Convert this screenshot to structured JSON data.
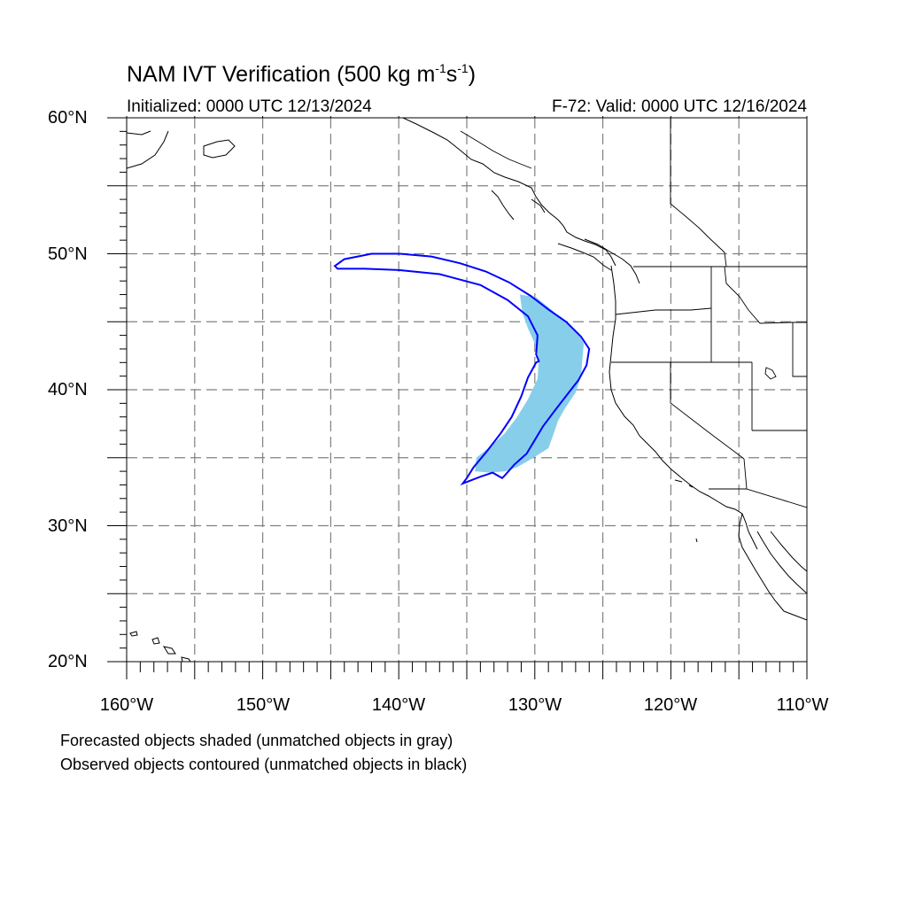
{
  "title": {
    "main": "NAM IVT Verification (500 kg m",
    "exp1": "-1",
    "mid": "s",
    "exp2": "-1",
    "close": ")"
  },
  "subtitle_left": "Initialized: 0000 UTC 12/13/2024",
  "subtitle_right": "F-72: Valid: 0000 UTC 12/16/2024",
  "lat_labels": [
    "60°N",
    "50°N",
    "40°N",
    "30°N",
    "20°N"
  ],
  "lon_labels": [
    "160°W",
    "150°W",
    "140°W",
    "130°W",
    "120°W",
    "110°W"
  ],
  "footnotes": [
    "Forecasted objects shaded (unmatched objects in gray)",
    "Observed objects contoured (unmatched objects in black)"
  ],
  "colors": {
    "forecast_fill": "#87ceeb",
    "observed_contour": "#0000ff",
    "grid": "#808080",
    "coast": "#000000"
  },
  "map_extent": {
    "lon_min": -160,
    "lon_max": -110,
    "lat_min": 20,
    "lat_max": 60
  },
  "grid_lines": {
    "lons": [
      -155,
      -150,
      -145,
      -140,
      -135,
      -130,
      -125,
      -120,
      -115
    ],
    "lats": [
      25,
      30,
      35,
      40,
      45,
      50,
      55
    ]
  },
  "forecast_object": [
    [
      -131.1,
      47.0
    ],
    [
      -129.9,
      46.8
    ],
    [
      -128.8,
      45.9
    ],
    [
      -127.7,
      44.9
    ],
    [
      -126.8,
      44.1
    ],
    [
      -126.4,
      43.4
    ],
    [
      -126.5,
      42.3
    ],
    [
      -126.6,
      41.0
    ],
    [
      -127.0,
      39.8
    ],
    [
      -127.8,
      38.6
    ],
    [
      -128.3,
      37.7
    ],
    [
      -128.6,
      36.8
    ],
    [
      -129.0,
      35.7
    ],
    [
      -130.1,
      35.0
    ],
    [
      -131.3,
      34.3
    ],
    [
      -132.2,
      34.0
    ],
    [
      -133.3,
      33.9
    ],
    [
      -134.4,
      34.0
    ],
    [
      -134.3,
      35.0
    ],
    [
      -133.3,
      35.8
    ],
    [
      -132.2,
      36.8
    ],
    [
      -131.3,
      38.0
    ],
    [
      -130.5,
      39.3
    ],
    [
      -129.8,
      40.8
    ],
    [
      -129.7,
      42.2
    ],
    [
      -130.0,
      43.4
    ],
    [
      -130.5,
      44.5
    ],
    [
      -130.9,
      45.6
    ]
  ],
  "observed_object": [
    [
      -144.7,
      49.1
    ],
    [
      -144.0,
      49.6
    ],
    [
      -142.0,
      50.0
    ],
    [
      -139.9,
      50.0
    ],
    [
      -137.6,
      49.8
    ],
    [
      -135.5,
      49.3
    ],
    [
      -133.6,
      48.7
    ],
    [
      -131.9,
      47.9
    ],
    [
      -130.3,
      46.9
    ],
    [
      -129.0,
      45.9
    ],
    [
      -127.7,
      45.0
    ],
    [
      -126.6,
      43.9
    ],
    [
      -126.0,
      43.0
    ],
    [
      -126.2,
      41.8
    ],
    [
      -126.8,
      40.7
    ],
    [
      -127.5,
      39.8
    ],
    [
      -128.5,
      38.5
    ],
    [
      -129.4,
      37.3
    ],
    [
      -130.0,
      36.3
    ],
    [
      -130.6,
      35.3
    ],
    [
      -131.5,
      34.5
    ],
    [
      -132.2,
      33.7
    ],
    [
      -132.4,
      33.5
    ],
    [
      -133.1,
      33.9
    ],
    [
      -134.0,
      33.6
    ],
    [
      -135.3,
      33.1
    ],
    [
      -135.0,
      33.5
    ],
    [
      -134.5,
      34.3
    ],
    [
      -133.5,
      35.5
    ],
    [
      -132.5,
      36.8
    ],
    [
      -131.7,
      38.0
    ],
    [
      -131.0,
      39.5
    ],
    [
      -130.5,
      40.9
    ],
    [
      -129.9,
      42.0
    ],
    [
      -129.7,
      42.1
    ],
    [
      -129.9,
      42.6
    ],
    [
      -129.8,
      44.0
    ],
    [
      -130.5,
      45.4
    ],
    [
      -132.0,
      46.6
    ],
    [
      -134.0,
      47.7
    ],
    [
      -137.0,
      48.5
    ],
    [
      -140.0,
      48.8
    ],
    [
      -142.5,
      48.9
    ],
    [
      -144.5,
      48.9
    ]
  ]
}
